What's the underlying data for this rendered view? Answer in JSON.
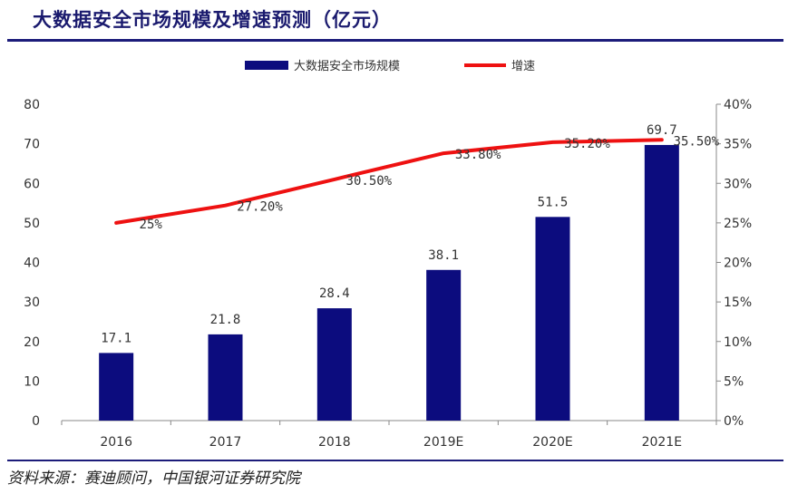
{
  "figure": {
    "title": "大数据安全市场规模及增速预测（亿元）",
    "source": "资料来源：赛迪顾问，中国银河证券研究院"
  },
  "chart_data": {
    "type": "bar",
    "categories": [
      "2016",
      "2017",
      "2018",
      "2019E",
      "2020E",
      "2021E"
    ],
    "series": [
      {
        "name": "大数据安全市场规模",
        "type": "bar",
        "axis": "left",
        "color": "#0c0c7e",
        "values": [
          17.1,
          21.8,
          28.4,
          38.1,
          51.5,
          69.7
        ],
        "labels": [
          "17.1",
          "21.8",
          "28.4",
          "38.1",
          "51.5",
          "69.7"
        ]
      },
      {
        "name": "增速",
        "type": "line",
        "axis": "right",
        "color": "#ee1111",
        "values": [
          25.0,
          27.2,
          30.5,
          33.8,
          35.2,
          35.5
        ],
        "labels": [
          "25%",
          "27.20%",
          "30.50%",
          "33.80%",
          "35.20%",
          "35.50%"
        ]
      }
    ],
    "y_left": {
      "lim": [
        0,
        80
      ],
      "ticks": [
        "0",
        "10",
        "20",
        "30",
        "40",
        "50",
        "60",
        "70",
        "80"
      ]
    },
    "y_right": {
      "lim": [
        0,
        40
      ],
      "ticks": [
        "0%",
        "5%",
        "10%",
        "15%",
        "20%",
        "25%",
        "30%",
        "35%",
        "40%"
      ]
    },
    "grid": false,
    "legend_position": "top-center"
  }
}
